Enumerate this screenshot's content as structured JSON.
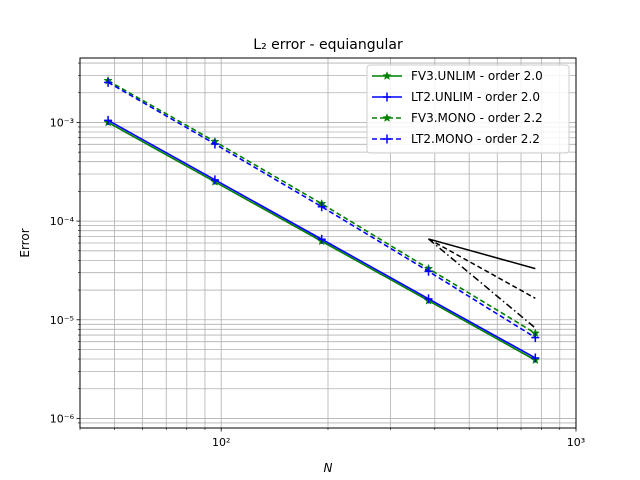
{
  "chart_data": {
    "type": "line",
    "title": "L₂ error - equiangular",
    "xlabel": "N",
    "ylabel": "Error",
    "xscale": "log",
    "yscale": "log",
    "xlim": [
      40,
      1000
    ],
    "ylim": [
      8e-07,
      0.0045
    ],
    "grid": true,
    "grid_minor": true,
    "legend_position": "top-right",
    "x_tick_labels": [
      "10²",
      "10³"
    ],
    "y_tick_labels": [
      "10⁻⁶",
      "10⁻⁵",
      "10⁻⁴",
      "10⁻³"
    ],
    "x": [
      48,
      96,
      192,
      384,
      768
    ],
    "series": [
      {
        "name": "FV3.UNLIM - order 2.0",
        "values": [
          0.001,
          0.00025,
          6.25e-05,
          1.56e-05,
          3.9e-06
        ],
        "color": "#008000",
        "dash": "solid",
        "marker": "star"
      },
      {
        "name": "LT2.UNLIM - order 2.0",
        "values": [
          0.00105,
          0.000262,
          6.55e-05,
          1.63e-05,
          4.1e-06
        ],
        "color": "#0000ff",
        "dash": "solid",
        "marker": "plus"
      },
      {
        "name": "FV3.MONO - order 2.2",
        "values": [
          0.00265,
          0.00064,
          0.00015,
          3.3e-05,
          7.3e-06
        ],
        "color": "#008000",
        "dash": "dashed",
        "marker": "star"
      },
      {
        "name": "LT2.MONO - order 2.2",
        "values": [
          0.00255,
          0.000605,
          0.00014,
          3.1e-05,
          6.6e-06
        ],
        "color": "#0000ff",
        "dash": "dashed",
        "marker": "plus"
      }
    ],
    "reference_slopes": [
      {
        "order": 1,
        "dash": "solid",
        "color": "#000000"
      },
      {
        "order": 2,
        "dash": "dashed",
        "color": "#000000"
      },
      {
        "order": 3,
        "dash": "dashdot",
        "color": "#000000"
      }
    ],
    "reference_origin": {
      "x": 384,
      "y": 6.6e-05
    },
    "reference_end_x": 768
  }
}
